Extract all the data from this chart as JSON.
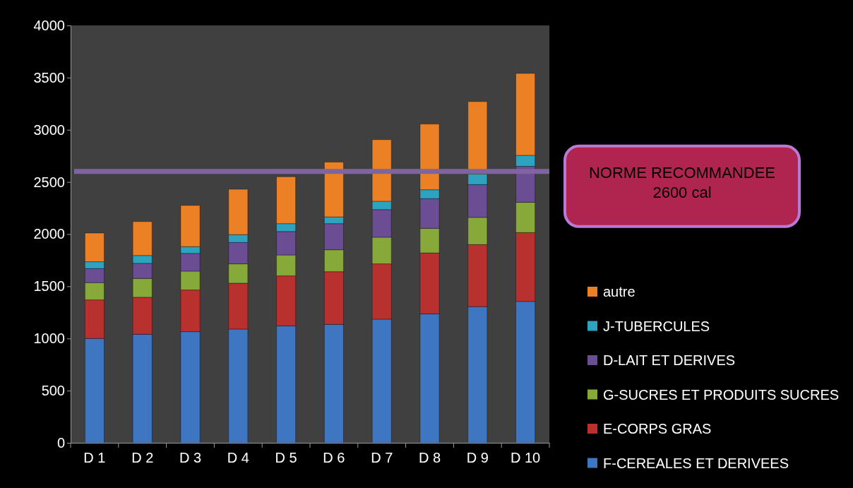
{
  "chart_data": {
    "type": "bar",
    "stacked": true,
    "categories": [
      "D 1",
      "D 2",
      "D 3",
      "D 4",
      "D 5",
      "D 6",
      "D 7",
      "D 8",
      "D 9",
      "D 10"
    ],
    "series": [
      {
        "name": "F-CEREALES ET DERIVEES",
        "color": "#3f76c1",
        "values": [
          1000,
          1040,
          1065,
          1090,
          1120,
          1135,
          1185,
          1235,
          1305,
          1355
        ]
      },
      {
        "name": "E-CORPS GRAS",
        "color": "#b8312f",
        "values": [
          370,
          355,
          400,
          440,
          480,
          505,
          530,
          585,
          595,
          660
        ]
      },
      {
        "name": "G-SUCRES ET PRODUITS SUCRES",
        "color": "#86a93a",
        "values": [
          165,
          180,
          180,
          185,
          200,
          210,
          255,
          235,
          260,
          290
        ]
      },
      {
        "name": "D-LAIT ET DERIVES",
        "color": "#6a4d93",
        "values": [
          135,
          145,
          170,
          205,
          225,
          250,
          265,
          285,
          315,
          345
        ]
      },
      {
        "name": "J-TUBERCULES",
        "color": "#2ea3c0",
        "values": [
          65,
          75,
          65,
          75,
          75,
          65,
          80,
          85,
          100,
          105
        ]
      },
      {
        "name": "autre",
        "color": "#ec8025",
        "values": [
          275,
          325,
          395,
          435,
          450,
          525,
          590,
          630,
          695,
          785
        ]
      }
    ],
    "ylim": [
      0,
      4000
    ],
    "yticks": [
      0,
      500,
      1000,
      1500,
      2000,
      2500,
      3000,
      3500,
      4000
    ],
    "legend": "right",
    "ref_lines": [
      {
        "axis": "y",
        "value": 2600,
        "label": "NORME RECOMMANDEE\n2600 cal",
        "color": "#8064a2"
      }
    ]
  }
}
